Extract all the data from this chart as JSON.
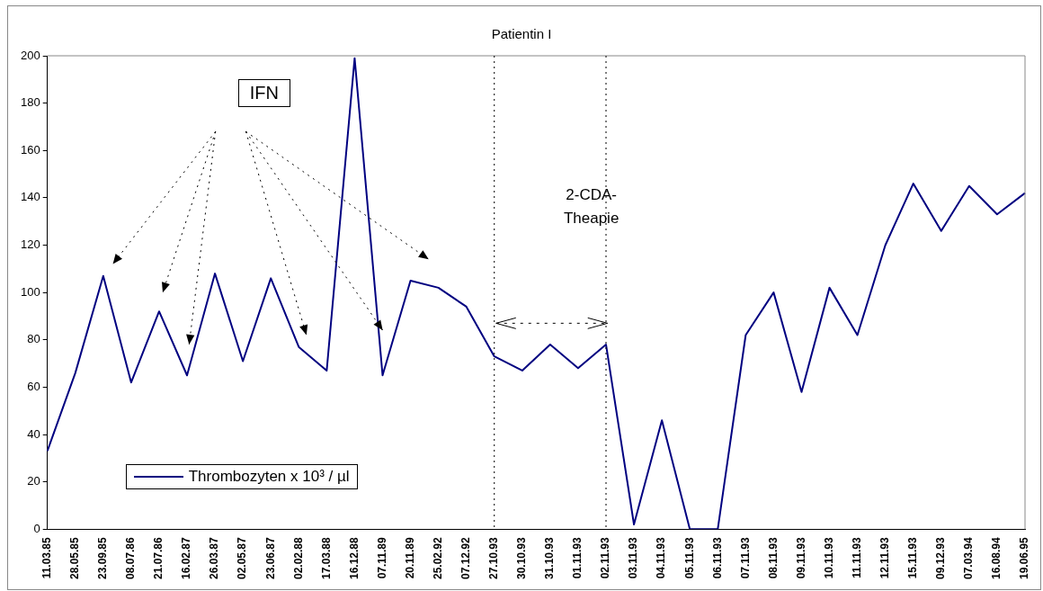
{
  "chart_data": {
    "type": "line",
    "title": "Patientin I",
    "categories": [
      "11.03.85",
      "28.05.85",
      "23.09.85",
      "08.07.86",
      "21.07.86",
      "16.02.87",
      "26.03.87",
      "02.05.87",
      "23.06.87",
      "02.02.88",
      "17.03.88",
      "16.12.88",
      "07.11.89",
      "20.11.89",
      "25.02.92",
      "07.12.92",
      "27.10.93",
      "30.10.93",
      "31.10.93",
      "01.11.93",
      "02.11.93",
      "03.11.93",
      "04.11.93",
      "05.11.93",
      "06.11.93",
      "07.11.93",
      "08.11.93",
      "09.11.93",
      "10.11.93",
      "11.11.93",
      "12.11.93",
      "15.11.93",
      "09.12.93",
      "07.03.94",
      "16.08.94",
      "19.06.95"
    ],
    "series": [
      {
        "name": "Thrombozyten x 10³ / µl",
        "color": "#000080",
        "values": [
          33,
          66,
          107,
          62,
          92,
          65,
          108,
          71,
          106,
          77,
          67,
          199,
          65,
          105,
          102,
          94,
          73,
          67,
          78,
          68,
          78,
          2,
          46,
          0,
          0,
          82,
          100,
          58,
          102,
          82,
          120,
          146,
          126,
          145,
          133,
          142
        ]
      }
    ],
    "ylim": [
      0,
      200
    ],
    "yticks": [
      0,
      20,
      40,
      60,
      80,
      100,
      120,
      140,
      160,
      180,
      200
    ],
    "grid": false,
    "legend": "bottom left",
    "marker": "none",
    "line_style": "solid",
    "ref_lines": [
      {
        "axis": "x",
        "value": "27.10.93",
        "color": "#000000",
        "line_style": "dotted"
      },
      {
        "axis": "x",
        "value": "02.11.93",
        "color": "#000000",
        "line_style": "dotted"
      }
    ],
    "annotations": [
      "IFN",
      "2-CDA-Theapie"
    ]
  }
}
